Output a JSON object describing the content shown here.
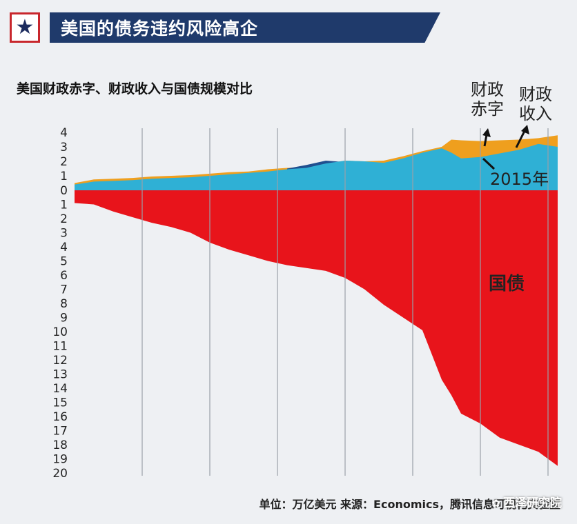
{
  "banner": {
    "star": "★",
    "title": "美国的债务违约风险高企"
  },
  "chart_data": {
    "type": "area",
    "title": "美国财政赤字、财政收入与国债规模对比",
    "ylabel": "",
    "upper_ticks": [
      "4",
      "3",
      "2",
      "1",
      "0"
    ],
    "lower_ticks": [
      "1",
      "2",
      "3",
      "4",
      "5",
      "6",
      "7",
      "8",
      "9",
      "10",
      "11",
      "12",
      "13",
      "14",
      "15",
      "16",
      "17",
      "18",
      "19",
      "20"
    ],
    "ylim_upper": [
      0,
      4
    ],
    "ylim_lower": [
      0,
      20
    ],
    "x_range": [
      0,
      100
    ],
    "gridlines_x": [
      14,
      28,
      42,
      56,
      70,
      84,
      98
    ],
    "colors": {
      "revenue": "#2fb0d5",
      "deficit": "#ef9f1e",
      "surplus": "#1f4f8f",
      "debt": "#e8141b"
    },
    "series": [
      {
        "name": "财政收入",
        "x": [
          0,
          4,
          8,
          12,
          16,
          20,
          24,
          28,
          32,
          36,
          40,
          44,
          48,
          50,
          52,
          56,
          60,
          64,
          68,
          72,
          76,
          78,
          80,
          84,
          88,
          92,
          96,
          100
        ],
        "values": [
          0.4,
          0.6,
          0.65,
          0.7,
          0.8,
          0.85,
          0.9,
          1.0,
          1.1,
          1.2,
          1.3,
          1.45,
          1.55,
          1.7,
          1.85,
          2.05,
          2.0,
          1.9,
          2.2,
          2.6,
          2.9,
          2.6,
          2.2,
          2.3,
          2.55,
          2.8,
          3.2,
          3.0
        ]
      },
      {
        "name": "财政赤字",
        "x": [
          0,
          4,
          8,
          12,
          16,
          20,
          24,
          28,
          32,
          36,
          40,
          44,
          48,
          50,
          52,
          56,
          60,
          64,
          68,
          72,
          76,
          78,
          80,
          84,
          88,
          92,
          96,
          100
        ],
        "values": [
          0.5,
          0.75,
          0.8,
          0.85,
          0.95,
          1.0,
          1.05,
          1.15,
          1.25,
          1.3,
          1.45,
          1.55,
          1.6,
          1.7,
          1.85,
          2.05,
          2.0,
          2.05,
          2.35,
          2.7,
          3.0,
          3.5,
          3.45,
          3.4,
          3.45,
          3.5,
          3.6,
          3.8
        ]
      },
      {
        "name": "国债",
        "x": [
          0,
          4,
          8,
          12,
          16,
          20,
          24,
          28,
          32,
          36,
          40,
          44,
          48,
          52,
          56,
          60,
          64,
          68,
          72,
          76,
          78,
          80,
          84,
          88,
          92,
          96,
          100
        ],
        "values": [
          0.9,
          1.0,
          1.5,
          1.9,
          2.3,
          2.6,
          3.0,
          3.7,
          4.2,
          4.6,
          5.0,
          5.3,
          5.5,
          5.7,
          6.2,
          7.0,
          8.1,
          9.0,
          9.9,
          13.4,
          14.5,
          15.8,
          16.5,
          17.5,
          18.0,
          18.5,
          19.5
        ]
      }
    ],
    "labels": {
      "deficit": "财政\n赤字",
      "revenue": "财政\n收入",
      "year": "2015年",
      "debt": "国债"
    }
  },
  "footer": {
    "source": "单位：万亿美元  来源：Economics，腾讯信息可视化实验室",
    "watermark": "西泽研究院",
    "watermark_icon": "✿"
  }
}
